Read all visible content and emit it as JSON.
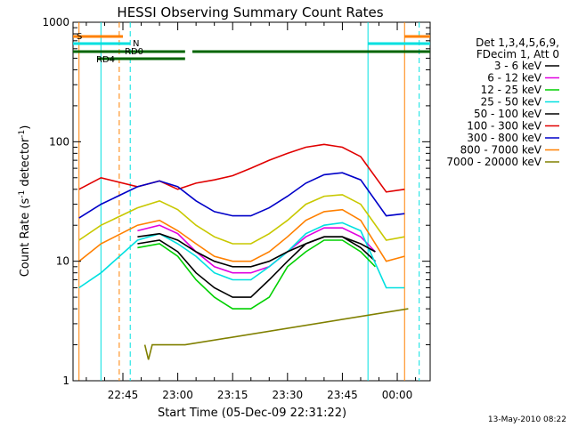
{
  "chart_data": {
    "type": "line",
    "title": "HESSI Observing Summary Count Rates",
    "xlabel": "Start Time (05-Dec-09 22:31:22)",
    "ylabel": "Count Rate (s⁻¹ detector⁻¹)",
    "ylabel_parts": [
      "Count Rate (s",
      "-1",
      " detector",
      "-1",
      ")"
    ],
    "y_scale": "log",
    "xlim": [
      "22:31:22",
      "00:09:00"
    ],
    "ylim": [
      1,
      1000
    ],
    "x_ticks": [
      "22:45",
      "23:00",
      "23:15",
      "23:30",
      "23:45",
      "00:00"
    ],
    "y_ticks": [
      {
        "value": 1,
        "label": "1"
      },
      {
        "value": 10,
        "label": "10"
      },
      {
        "value": 100,
        "label": "100"
      },
      {
        "value": 1000,
        "label": "1000"
      }
    ],
    "legend_position": "right",
    "legend_header": [
      "Det 1,3,4,5,6,9,",
      "FDecim 1, Att 0"
    ],
    "timestamp": "13-May-2010 08:22",
    "series": [
      {
        "name": "3 - 6 keV",
        "color": "#000000",
        "x": [
          "22:49",
          "22:55",
          "23:00",
          "23:05",
          "23:10",
          "23:15",
          "23:20",
          "23:25",
          "23:30",
          "23:35",
          "23:40",
          "23:45",
          "23:50",
          "23:54"
        ],
        "y": [
          14,
          15,
          12,
          8,
          6,
          5,
          5,
          7,
          10,
          14,
          16,
          16,
          13,
          10
        ]
      },
      {
        "name": "6 - 12 keV",
        "color": "#e000e0",
        "x": [
          "22:49",
          "22:55",
          "23:00",
          "23:05",
          "23:10",
          "23:15",
          "23:20",
          "23:25",
          "23:30",
          "23:35",
          "23:40",
          "23:45",
          "23:50",
          "23:54"
        ],
        "y": [
          18,
          20,
          17,
          12,
          9,
          8,
          8,
          9,
          12,
          16,
          19,
          19,
          16,
          12
        ]
      },
      {
        "name": "12 - 25 keV",
        "color": "#00d000",
        "x": [
          "22:49",
          "22:55",
          "23:00",
          "23:05",
          "23:10",
          "23:15",
          "23:20",
          "23:25",
          "23:30",
          "23:35",
          "23:40",
          "23:45",
          "23:50",
          "23:54"
        ],
        "y": [
          13,
          14,
          11,
          7,
          5,
          4,
          4,
          5,
          9,
          12,
          15,
          15,
          12,
          9
        ]
      },
      {
        "name": "25 - 50 keV",
        "color": "#00e0e0",
        "x": [
          "22:33",
          "22:39",
          "22:49",
          "22:55",
          "23:00",
          "23:05",
          "23:10",
          "23:15",
          "23:20",
          "23:25",
          "23:30",
          "23:35",
          "23:40",
          "23:45",
          "23:50",
          "23:57",
          "00:02"
        ],
        "y": [
          6,
          8,
          15,
          17,
          14,
          11,
          8,
          7,
          7,
          9,
          12,
          17,
          20,
          21,
          18,
          6,
          6
        ]
      },
      {
        "name": "50 - 100 keV",
        "color": "#000000",
        "x": [
          "22:49",
          "22:55",
          "23:00",
          "23:05",
          "23:10",
          "23:15",
          "23:20",
          "23:25",
          "23:30",
          "23:35",
          "23:40",
          "23:45",
          "23:50",
          "23:54"
        ],
        "y": [
          16,
          17,
          15,
          12,
          10,
          9,
          9,
          10,
          12,
          14,
          16,
          16,
          14,
          12
        ]
      },
      {
        "name": "100 - 300 keV",
        "color": "#e00000",
        "x": [
          "22:33",
          "22:39",
          "22:49",
          "22:55",
          "23:00",
          "23:05",
          "23:10",
          "23:15",
          "23:20",
          "23:25",
          "23:30",
          "23:35",
          "23:40",
          "23:45",
          "23:50",
          "23:57",
          "00:02"
        ],
        "y": [
          40,
          50,
          42,
          47,
          40,
          45,
          48,
          52,
          60,
          70,
          80,
          90,
          95,
          90,
          75,
          38,
          40
        ]
      },
      {
        "name": "300 - 800 keV",
        "color": "#0000c8",
        "x": [
          "22:33",
          "22:39",
          "22:49",
          "22:55",
          "23:00",
          "23:05",
          "23:10",
          "23:15",
          "23:20",
          "23:25",
          "23:30",
          "23:35",
          "23:40",
          "23:45",
          "23:50",
          "23:57",
          "00:02"
        ],
        "y": [
          23,
          30,
          42,
          47,
          42,
          32,
          26,
          24,
          24,
          28,
          35,
          45,
          53,
          55,
          48,
          24,
          25
        ]
      },
      {
        "name": "800 - 7000 keV",
        "color": "#ff8000",
        "x": [
          "22:33",
          "22:39",
          "22:49",
          "22:55",
          "23:00",
          "23:05",
          "23:10",
          "23:15",
          "23:20",
          "23:25",
          "23:30",
          "23:35",
          "23:40",
          "23:45",
          "23:50",
          "23:57",
          "00:02"
        ],
        "y": [
          10,
          14,
          20,
          22,
          18,
          14,
          11,
          10,
          10,
          12,
          16,
          22,
          26,
          27,
          22,
          10,
          11
        ]
      },
      {
        "name": "7000 - 20000 keV",
        "color": "#808000",
        "x": [
          "22:51",
          "22:52",
          "22:53",
          "23:02",
          "00:03"
        ],
        "y": [
          2,
          1.5,
          2,
          2,
          4
        ]
      },
      {
        "name": "",
        "color": "#c8c800",
        "x": [
          "22:33",
          "22:39",
          "22:49",
          "22:55",
          "23:00",
          "23:05",
          "23:10",
          "23:15",
          "23:20",
          "23:25",
          "23:30",
          "23:35",
          "23:40",
          "23:45",
          "23:50",
          "23:57",
          "00:02"
        ],
        "y": [
          15,
          20,
          28,
          32,
          27,
          20,
          16,
          14,
          14,
          17,
          22,
          30,
          35,
          36,
          30,
          15,
          16
        ]
      }
    ],
    "annotations": {
      "flags": [
        {
          "label": "S",
          "color": "#ff8000"
        },
        {
          "label": "N",
          "color": "#00e0e0"
        },
        {
          "label": "RD0",
          "color": "#006400"
        },
        {
          "label": "RD4",
          "color": "#006400"
        }
      ]
    }
  }
}
